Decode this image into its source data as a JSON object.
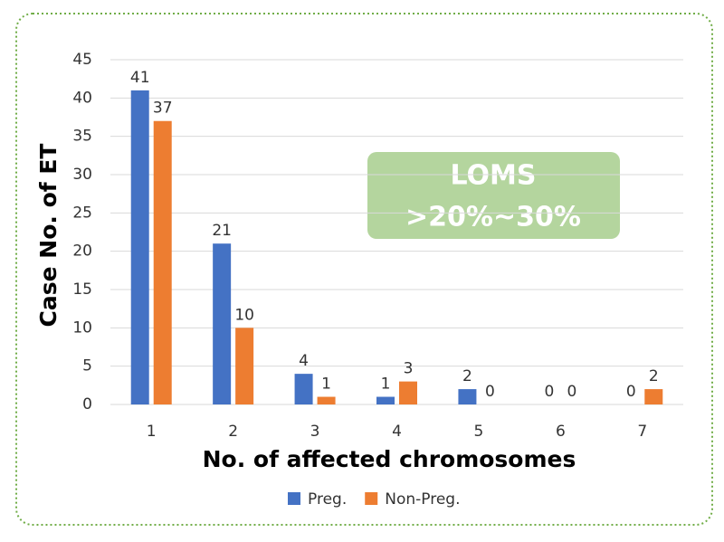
{
  "chart_data": {
    "type": "bar",
    "x_label": "No. of affected chromosomes",
    "y_label": "Case No. of ET",
    "categories": [
      "1",
      "2",
      "3",
      "4",
      "5",
      "6",
      "7"
    ],
    "series": [
      {
        "name": "Preg.",
        "color": "#4472c4",
        "values": [
          41,
          21,
          4,
          1,
          2,
          0,
          0
        ]
      },
      {
        "name": "Non-Preg.",
        "color": "#ed7d31",
        "values": [
          37,
          10,
          1,
          3,
          0,
          0,
          2
        ]
      }
    ],
    "ylim": [
      0,
      45
    ],
    "yticks": [
      0,
      5,
      10,
      15,
      20,
      25,
      30,
      35,
      40,
      45
    ],
    "grid": true,
    "legend": "bottom",
    "annotation_lines": [
      "LOMS",
      ">20%~30%"
    ]
  }
}
